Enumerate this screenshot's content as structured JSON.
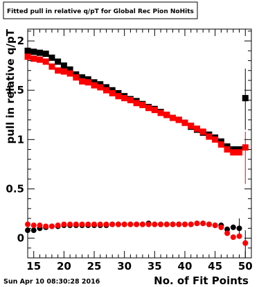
{
  "title": "Fitted pull in relative q/pT  for Global Rec Pion NoHits",
  "timestamp": "Sun Apr 10 08:30:28 2016",
  "colors": {
    "series_black": "#000000",
    "series_red": "#ff0000",
    "frame": "#000000"
  },
  "chart_data": {
    "type": "scatter",
    "title": "Fitted pull in relative q/pT  for Global Rec Pion NoHits",
    "xlabel": "No. of Fit Points",
    "ylabel": "pull in relative q/pT",
    "xlim": [
      14,
      51
    ],
    "ylim": [
      -0.2,
      2.12
    ],
    "xticks": [
      15,
      20,
      25,
      30,
      35,
      40,
      45,
      50
    ],
    "xtick_labels": [
      "15",
      "20",
      "25",
      "30",
      "35",
      "40",
      "45",
      "50"
    ],
    "yticks": [
      0,
      0.5,
      1,
      1.5,
      2
    ],
    "ytick_labels": [
      "0",
      "0.5",
      "1",
      "1.5",
      "2"
    ],
    "grid": false,
    "x": [
      14,
      15,
      16,
      17,
      18,
      19,
      20,
      21,
      22,
      23,
      24,
      25,
      26,
      27,
      28,
      29,
      30,
      31,
      32,
      33,
      34,
      35,
      36,
      37,
      38,
      39,
      40,
      41,
      42,
      43,
      44,
      45,
      46,
      47,
      48,
      49,
      50
    ],
    "series": [
      {
        "id": "sigma_black",
        "marker": "square",
        "color": "#000000",
        "values": [
          1.9,
          1.89,
          1.88,
          1.87,
          1.83,
          1.79,
          1.75,
          1.71,
          1.66,
          1.63,
          1.61,
          1.58,
          1.56,
          1.53,
          1.5,
          1.47,
          1.44,
          1.41,
          1.39,
          1.36,
          1.33,
          1.31,
          1.28,
          1.25,
          1.22,
          1.2,
          1.17,
          1.13,
          1.1,
          1.07,
          1.05,
          1.02,
          0.98,
          0.93,
          0.9,
          0.9,
          1.42
        ],
        "error_bars": [
          {
            "x": 50,
            "low": 1.1,
            "high": 1.72
          }
        ]
      },
      {
        "id": "sigma_red",
        "marker": "square",
        "color": "#ff0000",
        "values": [
          1.84,
          1.82,
          1.81,
          1.79,
          1.74,
          1.7,
          1.69,
          1.67,
          1.63,
          1.59,
          1.58,
          1.55,
          1.53,
          1.5,
          1.47,
          1.44,
          1.42,
          1.4,
          1.37,
          1.35,
          1.32,
          1.3,
          1.27,
          1.25,
          1.22,
          1.2,
          1.17,
          1.14,
          1.11,
          1.08,
          1.03,
          1.0,
          0.95,
          0.9,
          0.87,
          0.87,
          0.92
        ],
        "error_bars": [
          {
            "x": 50,
            "low": 0.55,
            "high": 1.08
          }
        ]
      },
      {
        "id": "mean_black",
        "marker": "circle",
        "color": "#000000",
        "values": [
          0.08,
          0.08,
          0.1,
          0.11,
          0.12,
          0.12,
          0.13,
          0.13,
          0.13,
          0.13,
          0.13,
          0.13,
          0.13,
          0.13,
          0.14,
          0.14,
          0.14,
          0.14,
          0.14,
          0.14,
          0.15,
          0.14,
          0.14,
          0.14,
          0.14,
          0.14,
          0.14,
          0.14,
          0.15,
          0.15,
          0.14,
          0.13,
          0.13,
          0.09,
          0.11,
          0.1,
          -0.05
        ],
        "error_bars": [
          {
            "x": 49,
            "low": 0.02,
            "high": 0.2
          },
          {
            "x": 50,
            "low": -0.2,
            "high": 0.08
          }
        ]
      },
      {
        "id": "mean_red",
        "marker": "circle",
        "color": "#ff0000",
        "values": [
          0.14,
          0.13,
          0.13,
          0.12,
          0.12,
          0.13,
          0.14,
          0.14,
          0.14,
          0.14,
          0.14,
          0.14,
          0.14,
          0.14,
          0.14,
          0.14,
          0.14,
          0.14,
          0.14,
          0.14,
          0.14,
          0.14,
          0.14,
          0.14,
          0.14,
          0.14,
          0.14,
          0.14,
          0.15,
          0.15,
          0.14,
          0.13,
          0.11,
          0.05,
          0.01,
          0.02,
          -0.05
        ],
        "error_bars": []
      }
    ]
  }
}
